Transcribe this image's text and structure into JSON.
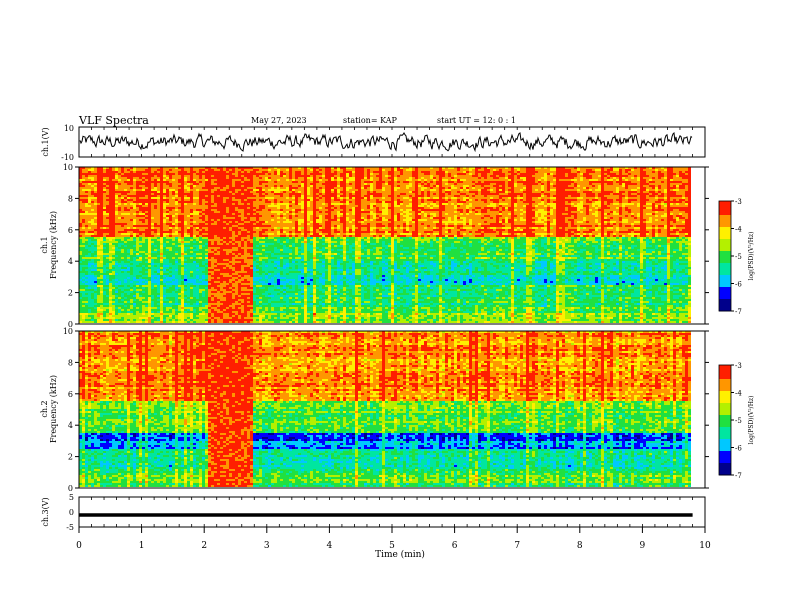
{
  "header": {
    "title": "VLF Spectra",
    "date": "May 27, 2023",
    "station": "station= KAP",
    "start": "start  UT =   12: 0  : 1"
  },
  "colorbar": {
    "label": "log(PSD)(V²/Hz)",
    "ticks": [
      "-3",
      "-4",
      "-5",
      "-6",
      "-7"
    ]
  },
  "colors": {
    "spectrogram_scale": [
      "#00008b",
      "#0000ff",
      "#00c8ff",
      "#00e6a0",
      "#20e040",
      "#b4f000",
      "#fff000",
      "#ff9600",
      "#ff1e00",
      "#ffffff"
    ]
  },
  "chart_data": [
    {
      "type": "line",
      "name": "ch.1 waveform",
      "ylabel": "ch.1(V)",
      "ylim": [
        -10,
        10
      ],
      "yticks": [
        "10",
        "-10"
      ],
      "xlim": [
        0,
        10
      ],
      "note_values": "waveform fluctuates roughly between -5 and +5 V over the full 0-9.8 min span"
    },
    {
      "type": "heatmap",
      "name": "ch.1 spectrogram",
      "ylabel": "ch.1\nFrequency (kHz)",
      "ylim": [
        0,
        10
      ],
      "yticks": [
        "0",
        "2",
        "4",
        "6",
        "8",
        "10"
      ],
      "xlim": [
        0,
        9.8
      ],
      "bands": [
        {
          "from_khz": 0,
          "to_khz": 1,
          "level": -4.8
        },
        {
          "from_khz": 1,
          "to_khz": 2.5,
          "level": -5.2
        },
        {
          "from_khz": 2.5,
          "to_khz": 4,
          "level": -5.5
        },
        {
          "from_khz": 4,
          "to_khz": 5.5,
          "level": -5.0
        },
        {
          "from_khz": 5.5,
          "to_khz": 10,
          "level": -3.6
        }
      ],
      "burst": {
        "from_min": 2.05,
        "to_min": 2.75,
        "level": -3.4
      }
    },
    {
      "type": "heatmap",
      "name": "ch.2 spectrogram",
      "ylabel": "ch.2\nFrequency (kHz)",
      "ylim": [
        0,
        10
      ],
      "yticks": [
        "0",
        "2",
        "4",
        "6",
        "8",
        "10"
      ],
      "xlim": [
        0,
        9.8
      ],
      "bands": [
        {
          "from_khz": 0,
          "to_khz": 1,
          "level": -5.0
        },
        {
          "from_khz": 1,
          "to_khz": 2.5,
          "level": -5.4
        },
        {
          "from_khz": 2.5,
          "to_khz": 3.5,
          "level": -6.1
        },
        {
          "from_khz": 3.5,
          "to_khz": 5.5,
          "level": -4.9
        },
        {
          "from_khz": 5.5,
          "to_khz": 10,
          "level": -3.7
        }
      ],
      "burst": {
        "from_min": 2.05,
        "to_min": 2.75,
        "level": -3.3
      }
    },
    {
      "type": "line",
      "name": "ch.3 waveform",
      "ylabel": "ch.3(V)",
      "ylim": [
        -5,
        5
      ],
      "yticks": [
        "5",
        "0",
        "-5"
      ],
      "xlim": [
        0,
        10
      ],
      "xlabel": "Time (min)",
      "xticks": [
        "0",
        "1",
        "2",
        "3",
        "4",
        "5",
        "6",
        "7",
        "8",
        "9",
        "10"
      ],
      "note_values": "thick band centred near -1 V spanning the full record"
    }
  ]
}
